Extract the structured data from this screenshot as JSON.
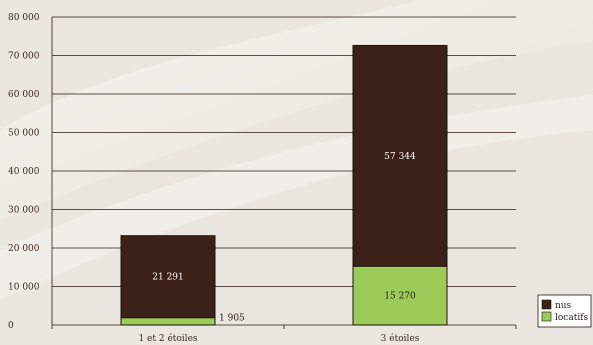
{
  "chart_data": {
    "type": "bar",
    "stacked": true,
    "categories": [
      "1 et 2 étoiles",
      "3 étoiles"
    ],
    "series": [
      {
        "name": "locatifs",
        "values": [
          1905,
          15270
        ],
        "color": "#9ccb59",
        "value_labels": [
          "1 905",
          "15 270"
        ]
      },
      {
        "name": "nus",
        "values": [
          21291,
          57344
        ],
        "color": "#3b2117",
        "value_labels": [
          "21 291",
          "57 344"
        ]
      }
    ],
    "ylim": [
      0,
      80000
    ],
    "yticks": [
      0,
      10000,
      20000,
      30000,
      40000,
      50000,
      60000,
      70000,
      80000
    ],
    "ytick_labels": [
      "0",
      "10 000",
      "20 000",
      "30 000",
      "40 000",
      "50 000",
      "60 000",
      "70 000",
      "80 000"
    ],
    "grid": true,
    "legend_position": "bottom-right",
    "legend_order": [
      "nus",
      "locatifs"
    ],
    "colors": {
      "grid": "#2a1a12",
      "background": "#ece8e1"
    }
  }
}
